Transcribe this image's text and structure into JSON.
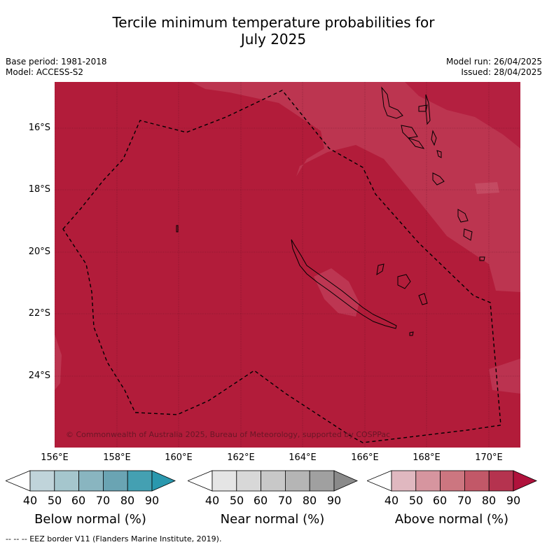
{
  "title": {
    "line1": "Tercile minimum temperature probabilities for",
    "line2": "July 2025"
  },
  "meta": {
    "base_period": "Base period: 1981-2018",
    "model": "Model: ACCESS-S2",
    "model_run": "Model run: 26/04/2025",
    "issued": "Issued: 28/04/2025"
  },
  "map": {
    "latitude_labels": [
      "16°S",
      "18°S",
      "20°S",
      "22°S",
      "24°S"
    ],
    "longitude_labels": [
      "156°E",
      "158°E",
      "160°E",
      "162°E",
      "164°E",
      "166°E",
      "168°E",
      "170°E"
    ],
    "copyright": "© Commonwealth of Australia 2025, Bureau of Meteorology, supported by COSPPac",
    "colors": {
      "dominant": "#b21c3a",
      "lighter": "#bd3550",
      "lightest": "#c44a62"
    }
  },
  "colorbars": [
    {
      "label": "Below normal (%)",
      "ticks": [
        "40",
        "50",
        "60",
        "70",
        "80",
        "90"
      ],
      "colors": [
        "#ffffff",
        "#c0d4da",
        "#a5c6cd",
        "#89b5c0",
        "#6aa4b3",
        "#44a0b2",
        "#2a98ae"
      ]
    },
    {
      "label": "Near normal (%)",
      "ticks": [
        "40",
        "50",
        "60",
        "70",
        "80",
        "90"
      ],
      "colors": [
        "#ffffff",
        "#e5e5e5",
        "#d8d8d8",
        "#c8c8c8",
        "#b5b5b5",
        "#a0a0a0",
        "#8a8a8a"
      ]
    },
    {
      "label": "Above normal (%)",
      "ticks": [
        "40",
        "50",
        "60",
        "70",
        "80",
        "90"
      ],
      "colors": [
        "#ffffff",
        "#e0b8c0",
        "#d6959f",
        "#cc7680",
        "#c25868",
        "#b5334f",
        "#b0123c"
      ]
    }
  ],
  "footnote": "--  --  -- EEZ border V11 (Flanders Marine Institute, 2019)."
}
